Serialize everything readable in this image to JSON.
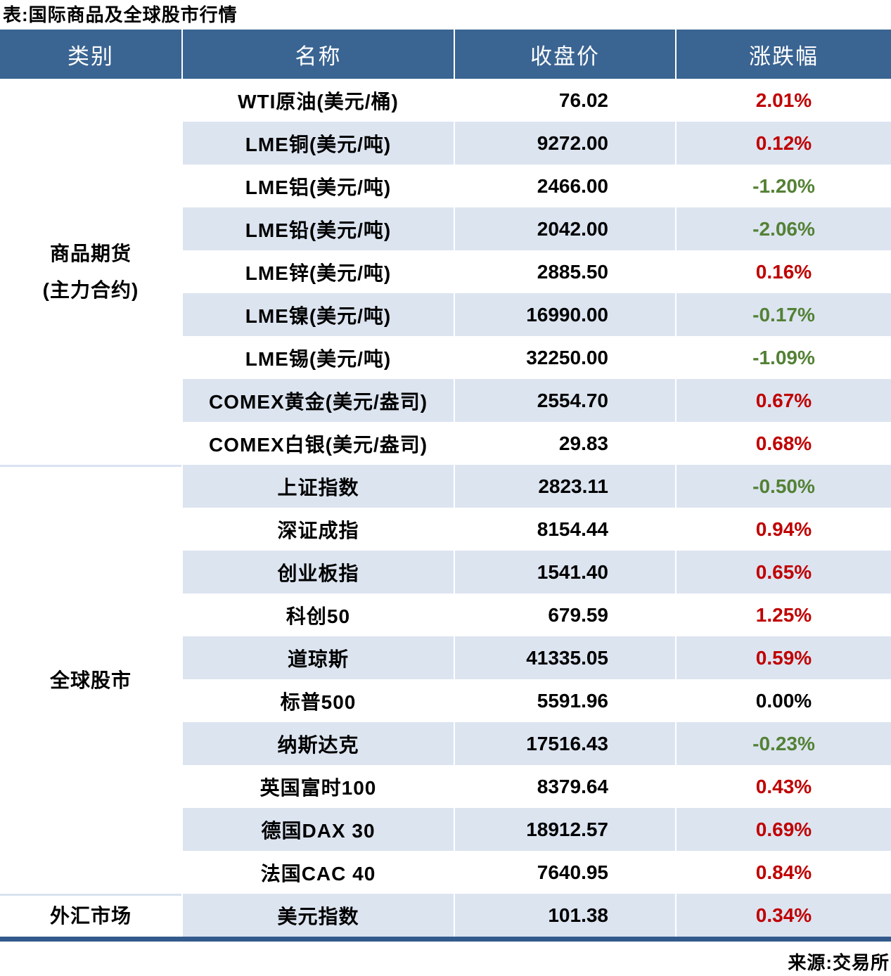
{
  "chart_data": {
    "type": "table",
    "title": "表:国际商品及全球股市行情",
    "source": "来源:交易所",
    "columns": [
      "类别",
      "名称",
      "收盘价",
      "涨跌幅"
    ],
    "colors": {
      "header_bg": "#3a6492",
      "header_text": "#ffffff",
      "stripe_bg": "#dce4f0",
      "up_red": "#c00000",
      "down_green": "#538135",
      "flat_black": "#000000",
      "bottom_rule": "#325a8c"
    },
    "sections": [
      {
        "category_lines": [
          "商品期货",
          "(主力合约)"
        ],
        "rows": [
          {
            "name": "WTI原油(美元/桶)",
            "close": "76.02",
            "change": "2.01%",
            "direction": "up"
          },
          {
            "name": "LME铜(美元/吨)",
            "close": "9272.00",
            "change": "0.12%",
            "direction": "up"
          },
          {
            "name": "LME铝(美元/吨)",
            "close": "2466.00",
            "change": "-1.20%",
            "direction": "down"
          },
          {
            "name": "LME铅(美元/吨)",
            "close": "2042.00",
            "change": "-2.06%",
            "direction": "down"
          },
          {
            "name": "LME锌(美元/吨)",
            "close": "2885.50",
            "change": "0.16%",
            "direction": "up"
          },
          {
            "name": "LME镍(美元/吨)",
            "close": "16990.00",
            "change": "-0.17%",
            "direction": "down"
          },
          {
            "name": "LME锡(美元/吨)",
            "close": "32250.00",
            "change": "-1.09%",
            "direction": "down"
          },
          {
            "name": "COMEX黄金(美元/盎司)",
            "close": "2554.70",
            "change": "0.67%",
            "direction": "up"
          },
          {
            "name": "COMEX白银(美元/盎司)",
            "close": "29.83",
            "change": "0.68%",
            "direction": "up"
          }
        ]
      },
      {
        "category_lines": [
          "全球股市"
        ],
        "rows": [
          {
            "name": "上证指数",
            "close": "2823.11",
            "change": "-0.50%",
            "direction": "down"
          },
          {
            "name": "深证成指",
            "close": "8154.44",
            "change": "0.94%",
            "direction": "up"
          },
          {
            "name": "创业板指",
            "close": "1541.40",
            "change": "0.65%",
            "direction": "up"
          },
          {
            "name": "科创50",
            "close": "679.59",
            "change": "1.25%",
            "direction": "up"
          },
          {
            "name": "道琼斯",
            "close": "41335.05",
            "change": "0.59%",
            "direction": "up"
          },
          {
            "name": "标普500",
            "close": "5591.96",
            "change": "0.00%",
            "direction": "flat"
          },
          {
            "name": "纳斯达克",
            "close": "17516.43",
            "change": "-0.23%",
            "direction": "down"
          },
          {
            "name": "英国富时100",
            "close": "8379.64",
            "change": "0.43%",
            "direction": "up"
          },
          {
            "name": "德国DAX 30",
            "close": "18912.57",
            "change": "0.69%",
            "direction": "up"
          },
          {
            "name": "法国CAC 40",
            "close": "7640.95",
            "change": "0.84%",
            "direction": "up"
          }
        ]
      },
      {
        "category_lines": [
          "外汇市场"
        ],
        "rows": [
          {
            "name": "美元指数",
            "close": "101.38",
            "change": "0.34%",
            "direction": "up"
          }
        ]
      }
    ]
  }
}
